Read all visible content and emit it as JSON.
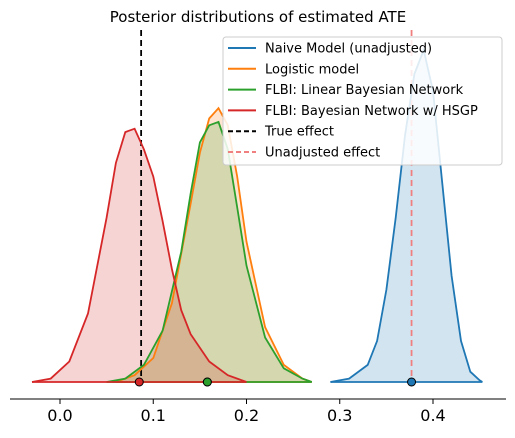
{
  "chart_data": {
    "type": "area",
    "title": "Posterior distributions of estimated ATE",
    "xlabel": "",
    "ylabel": "",
    "xlim": [
      -0.05,
      0.48
    ],
    "x_ticks": [
      "0.0",
      "0.1",
      "0.2",
      "0.3",
      "0.4"
    ],
    "x_tick_values": [
      0.0,
      0.1,
      0.2,
      0.3,
      0.4
    ],
    "legend_position": "top-right",
    "grid": false,
    "series": [
      {
        "name": "Naive Model (unadjusted)",
        "color": "#1f77b4",
        "fill": true,
        "point_estimate": 0.377,
        "density": [
          [
            0.29,
            0.0
          ],
          [
            0.31,
            0.01
          ],
          [
            0.33,
            0.05
          ],
          [
            0.34,
            0.12
          ],
          [
            0.35,
            0.27
          ],
          [
            0.36,
            0.48
          ],
          [
            0.37,
            0.72
          ],
          [
            0.38,
            0.9
          ],
          [
            0.39,
            0.97
          ],
          [
            0.4,
            0.85
          ],
          [
            0.41,
            0.58
          ],
          [
            0.42,
            0.31
          ],
          [
            0.43,
            0.12
          ],
          [
            0.44,
            0.03
          ],
          [
            0.45,
            0.005
          ],
          [
            0.453,
            0.0
          ]
        ]
      },
      {
        "name": "Logistic model",
        "color": "#ff7f0e",
        "fill": true,
        "point_estimate": 0.158,
        "density": [
          [
            0.06,
            0.0
          ],
          [
            0.08,
            0.02
          ],
          [
            0.1,
            0.07
          ],
          [
            0.12,
            0.23
          ],
          [
            0.14,
            0.52
          ],
          [
            0.15,
            0.67
          ],
          [
            0.16,
            0.77
          ],
          [
            0.17,
            0.8
          ],
          [
            0.18,
            0.75
          ],
          [
            0.19,
            0.6
          ],
          [
            0.2,
            0.41
          ],
          [
            0.22,
            0.16
          ],
          [
            0.24,
            0.05
          ],
          [
            0.26,
            0.01
          ],
          [
            0.27,
            0.0
          ]
        ]
      },
      {
        "name": "FLBI: Linear Bayesian Network",
        "color": "#2ca02c",
        "fill": true,
        "point_estimate": 0.158,
        "density": [
          [
            0.05,
            0.0
          ],
          [
            0.07,
            0.01
          ],
          [
            0.09,
            0.05
          ],
          [
            0.11,
            0.15
          ],
          [
            0.13,
            0.38
          ],
          [
            0.14,
            0.55
          ],
          [
            0.15,
            0.7
          ],
          [
            0.16,
            0.75
          ],
          [
            0.17,
            0.76
          ],
          [
            0.18,
            0.68
          ],
          [
            0.19,
            0.51
          ],
          [
            0.2,
            0.34
          ],
          [
            0.22,
            0.13
          ],
          [
            0.24,
            0.04
          ],
          [
            0.26,
            0.01
          ],
          [
            0.27,
            0.0
          ]
        ]
      },
      {
        "name": "FLBI: Bayesian Network w/ HSGP",
        "color": "#d62728",
        "fill": true,
        "point_estimate": 0.085,
        "density": [
          [
            -0.03,
            0.0
          ],
          [
            -0.01,
            0.01
          ],
          [
            0.01,
            0.06
          ],
          [
            0.03,
            0.2
          ],
          [
            0.05,
            0.48
          ],
          [
            0.06,
            0.64
          ],
          [
            0.07,
            0.73
          ],
          [
            0.08,
            0.74
          ],
          [
            0.09,
            0.68
          ],
          [
            0.1,
            0.6
          ],
          [
            0.11,
            0.47
          ],
          [
            0.12,
            0.33
          ],
          [
            0.13,
            0.21
          ],
          [
            0.14,
            0.14
          ],
          [
            0.16,
            0.06
          ],
          [
            0.18,
            0.02
          ],
          [
            0.2,
            0.0
          ]
        ]
      }
    ],
    "reference_lines": [
      {
        "name": "True effect",
        "x": 0.087,
        "color": "#000000",
        "style": "dashed"
      },
      {
        "name": "Unadjusted effect",
        "x": 0.377,
        "color": "#f08080",
        "style": "dashed"
      }
    ]
  }
}
